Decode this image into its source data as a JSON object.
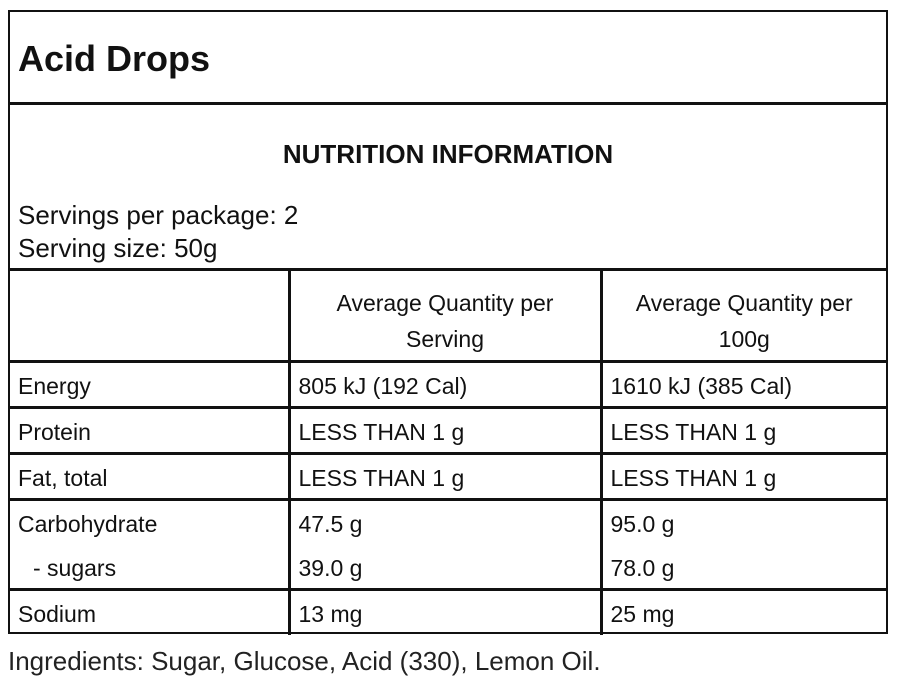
{
  "product": {
    "name": "Acid Drops"
  },
  "nutrition": {
    "heading": "NUTRITION INFORMATION",
    "servings_per_package": "Servings per package: 2",
    "serving_size": "Serving size: 50g",
    "columns": [
      "",
      "Average Quantity per Serving",
      "Average Quantity per 100g"
    ],
    "rows": [
      {
        "name": "Energy",
        "per_serving": "805 kJ (192 Cal)",
        "per_100g": "1610 kJ (385 Cal)"
      },
      {
        "name": "Protein",
        "per_serving": "LESS THAN 1 g",
        "per_100g": "LESS THAN 1 g"
      },
      {
        "name": "Fat, total",
        "per_serving": "LESS THAN 1 g",
        "per_100g": "LESS THAN 1 g"
      },
      {
        "name": "Carbohydrate",
        "per_serving": "47.5 g",
        "per_100g": "95.0 g",
        "sub": {
          "name": "- sugars",
          "per_serving": "39.0 g",
          "per_100g": "78.0 g"
        }
      },
      {
        "name": "Sodium",
        "per_serving": "13 mg",
        "per_100g": "25 mg"
      }
    ]
  },
  "ingredients": "Ingredients: Sugar, Glucose, Acid (330), Lemon Oil."
}
